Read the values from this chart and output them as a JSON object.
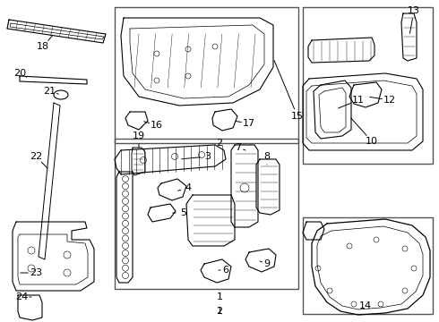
{
  "bg_color": "#ffffff",
  "line_color": "#000000",
  "box_color": "#555555",
  "fig_w": 4.9,
  "fig_h": 3.6,
  "dpi": 100
}
